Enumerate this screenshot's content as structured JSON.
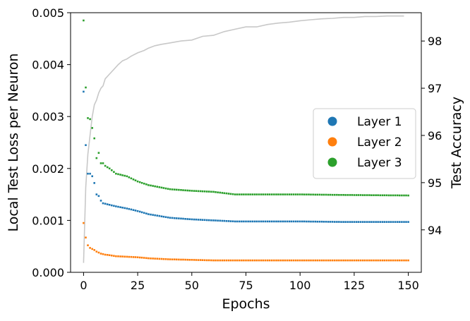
{
  "chart_data": {
    "type": "scatter",
    "xlabel": "Epochs",
    "ylabel": "Local Test Loss per Neuron",
    "y2label": "Test Accuracy",
    "xlim": [
      -6,
      156
    ],
    "ylim": [
      0,
      0.005
    ],
    "y2lim": [
      93.1,
      98.6
    ],
    "xticks": [
      0,
      25,
      50,
      75,
      100,
      125,
      150
    ],
    "yticks": [
      "0.000",
      "0.001",
      "0.002",
      "0.003",
      "0.004",
      "0.005"
    ],
    "y2ticks": [
      "94",
      "95",
      "96",
      "97",
      "98"
    ],
    "legend_position": "center-right",
    "grid": false,
    "series": [
      {
        "name": "Layer 1",
        "color": "#1f77b4",
        "axis": "left",
        "style": "points",
        "x": [
          0,
          1,
          2,
          3,
          4,
          5,
          6,
          7,
          8,
          9,
          10,
          12,
          15,
          20,
          25,
          30,
          40,
          50,
          60,
          70,
          80,
          100,
          120,
          150
        ],
        "values": [
          0.00348,
          0.00245,
          0.0019,
          0.0019,
          0.00185,
          0.00172,
          0.0015,
          0.00147,
          0.00138,
          0.00133,
          0.00132,
          0.0013,
          0.00127,
          0.00123,
          0.00118,
          0.00112,
          0.00105,
          0.00102,
          0.001,
          0.00098,
          0.00098,
          0.00098,
          0.00097,
          0.00097
        ]
      },
      {
        "name": "Layer 2",
        "color": "#ff7f0e",
        "axis": "left",
        "style": "points",
        "x": [
          0,
          1,
          2,
          3,
          4,
          5,
          6,
          7,
          8,
          9,
          10,
          12,
          15,
          20,
          25,
          30,
          40,
          50,
          60,
          70,
          80,
          100,
          120,
          150
        ],
        "values": [
          0.00095,
          0.00067,
          0.00052,
          0.00047,
          0.00045,
          0.00043,
          0.0004,
          0.00038,
          0.00036,
          0.00035,
          0.00034,
          0.00033,
          0.00031,
          0.0003,
          0.00029,
          0.00027,
          0.00025,
          0.00024,
          0.00023,
          0.00023,
          0.00023,
          0.00023,
          0.00023,
          0.00023
        ]
      },
      {
        "name": "Layer 3",
        "color": "#2ca02c",
        "axis": "left",
        "style": "points",
        "x": [
          0,
          1,
          2,
          3,
          4,
          5,
          6,
          7,
          8,
          9,
          10,
          12,
          15,
          20,
          25,
          30,
          40,
          50,
          60,
          70,
          80,
          100,
          120,
          150
        ],
        "values": [
          0.00485,
          0.00356,
          0.00297,
          0.00295,
          0.00278,
          0.00258,
          0.0022,
          0.0023,
          0.0021,
          0.0021,
          0.00205,
          0.002,
          0.0019,
          0.00185,
          0.00175,
          0.00168,
          0.0016,
          0.00157,
          0.00155,
          0.0015,
          0.0015,
          0.0015,
          0.00149,
          0.00148
        ]
      },
      {
        "name": "",
        "color": "#c8c8c8",
        "axis": "right",
        "style": "line",
        "x": [
          0,
          1,
          2,
          3,
          4,
          5,
          6,
          7,
          8,
          9,
          10,
          12,
          14,
          16,
          18,
          20,
          22,
          25,
          28,
          30,
          33,
          36,
          40,
          45,
          50,
          55,
          60,
          65,
          70,
          75,
          80,
          85,
          90,
          95,
          100,
          105,
          110,
          115,
          120,
          125,
          130,
          135,
          140,
          145,
          148
        ],
        "values": [
          93.3,
          94.9,
          95.6,
          96.0,
          96.4,
          96.65,
          96.75,
          96.9,
          97.0,
          97.05,
          97.2,
          97.3,
          97.4,
          97.5,
          97.58,
          97.62,
          97.68,
          97.75,
          97.8,
          97.85,
          97.9,
          97.93,
          97.96,
          98.0,
          98.02,
          98.1,
          98.12,
          98.2,
          98.25,
          98.3,
          98.3,
          98.35,
          98.38,
          98.4,
          98.43,
          98.45,
          98.47,
          98.48,
          98.5,
          98.5,
          98.52,
          98.52,
          98.53,
          98.53,
          98.53
        ]
      }
    ]
  }
}
